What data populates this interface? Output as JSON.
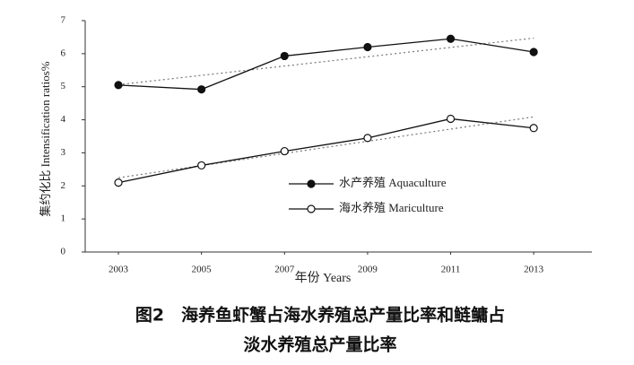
{
  "chart_data": {
    "type": "line",
    "y_label": "集约化比 Intensification ratios%",
    "x_label": "年份 Years",
    "caption": [
      "图2　海养鱼虾蟹占海水养殖总产量比率和鲢鳙占",
      "淡水养殖总产量比率"
    ],
    "x": [
      2003,
      2005,
      2007,
      2009,
      2011,
      2013
    ],
    "series": [
      {
        "name": "水产养殖 Aquaculture",
        "color": "#111111",
        "marker": "filled",
        "values": [
          5.05,
          4.92,
          5.93,
          6.2,
          6.45,
          6.05
        ]
      },
      {
        "name": "海水养殖 Mariculture",
        "color": "#111111",
        "marker": "open",
        "values": [
          2.1,
          2.62,
          3.05,
          3.45,
          4.03,
          3.75
        ]
      }
    ],
    "trendline": true,
    "xlim": [
      2002.2,
      2014.4
    ],
    "xticks": [
      2003,
      2005,
      2007,
      2009,
      2011,
      2013
    ],
    "ylim": [
      0,
      7
    ],
    "yticks": [
      0,
      1,
      2,
      3,
      4,
      5,
      6,
      7
    ]
  }
}
